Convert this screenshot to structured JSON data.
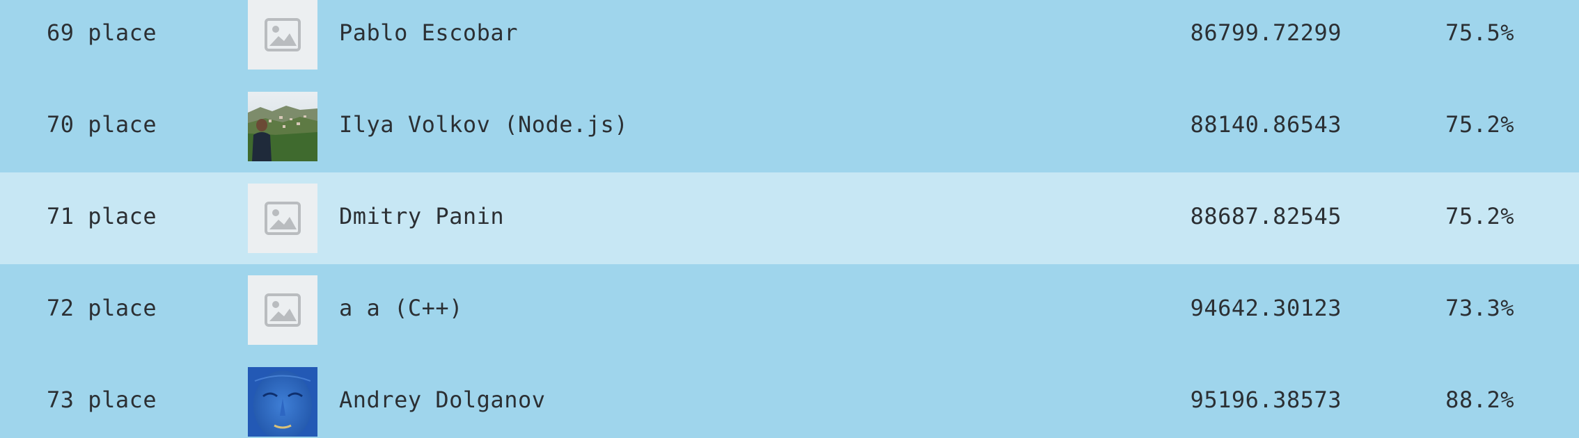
{
  "leaderboard": {
    "rows": [
      {
        "place": "69 place",
        "name": "Pablo Escobar",
        "score": "86799.72299",
        "percent": "75.5%",
        "avatar": "image-placeholder-icon",
        "highlighted": false
      },
      {
        "place": "70 place",
        "name": "Ilya Volkov (Node.js)",
        "score": "88140.86543",
        "percent": "75.2%",
        "avatar": "user-photo",
        "highlighted": false
      },
      {
        "place": "71 place",
        "name": "Dmitry Panin",
        "score": "88687.82545",
        "percent": "75.2%",
        "avatar": "image-placeholder-icon",
        "highlighted": true
      },
      {
        "place": "72 place",
        "name": "a a (C++)",
        "score": "94642.30123",
        "percent": "73.3%",
        "avatar": "image-placeholder-icon",
        "highlighted": false
      },
      {
        "place": "73 place",
        "name": "Andrey Dolganov",
        "score": "95196.38573",
        "percent": "88.2%",
        "avatar": "user-photo",
        "highlighted": false
      }
    ],
    "colors": {
      "row_background": "#9fd5ec",
      "highlight_background": "#c7e7f4",
      "placeholder_background": "#eceff1",
      "placeholder_icon": "#b9bcbf",
      "text": "#2b2f33"
    }
  }
}
